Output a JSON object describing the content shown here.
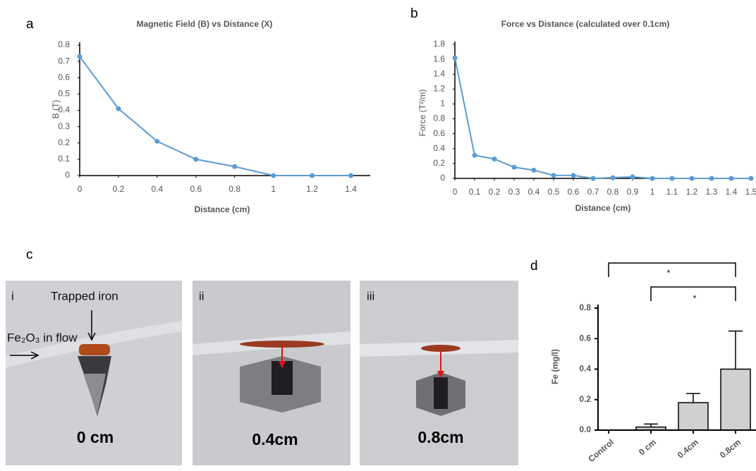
{
  "panel_labels": [
    "a",
    "b",
    "c",
    "d"
  ],
  "photos": [
    {
      "numeral": "i",
      "caption": "0 cm",
      "labels": [
        "Trapped iron",
        "Fe₂O₃ in flow"
      ]
    },
    {
      "numeral": "ii",
      "caption": "0.4cm"
    },
    {
      "numeral": "iii",
      "caption": "0.8cm"
    }
  ],
  "chart_data": [
    {
      "type": "line",
      "title": "Magnetic Field (B) vs Distance (X)",
      "x_label": "Distance (cm)",
      "y_label": "B (T)",
      "x": [
        0,
        0.2,
        0.4,
        0.6,
        0.8,
        1,
        1.2,
        1.4
      ],
      "values": [
        0.73,
        0.41,
        0.21,
        0.1,
        0.055,
        0,
        0,
        0
      ],
      "color": "#5b9bd5",
      "xlim": [
        0,
        1.5
      ],
      "xticks": [
        0,
        0.2,
        0.4,
        0.6,
        0.8,
        1,
        1.2,
        1.4
      ],
      "ylim": [
        0,
        0.8
      ],
      "yticks": [
        0,
        0.1,
        0.2,
        0.3,
        0.4,
        0.5,
        0.6,
        0.7,
        0.8
      ]
    },
    {
      "type": "line",
      "title": "Force vs Distance (calculated over 0.1cm)",
      "x_label": "Distance (cm)",
      "y_label": "Force (T²/m)",
      "x": [
        0,
        0.1,
        0.2,
        0.3,
        0.4,
        0.5,
        0.6,
        0.7,
        0.8,
        0.9,
        1,
        1.1,
        1.2,
        1.3,
        1.4,
        1.5
      ],
      "values": [
        1.62,
        0.31,
        0.26,
        0.15,
        0.11,
        0.04,
        0.04,
        0,
        0.01,
        0.02,
        0,
        0,
        0,
        0,
        0,
        0
      ],
      "color": "#5b9bd5",
      "xlim": [
        0,
        1.5
      ],
      "xticks": [
        0,
        0.1,
        0.2,
        0.3,
        0.4,
        0.5,
        0.6,
        0.7,
        0.8,
        0.9,
        1,
        1.1,
        1.2,
        1.3,
        1.4,
        1.5
      ],
      "ylim": [
        0,
        1.8
      ],
      "yticks": [
        0,
        0.2,
        0.4,
        0.6,
        0.8,
        1,
        1.2,
        1.4,
        1.6,
        1.8
      ]
    },
    {
      "type": "bar",
      "y_label": "Fe (mg/l)",
      "categories": [
        "Control",
        "0 cm",
        "0.4cm",
        "0.8cm"
      ],
      "values": [
        0,
        0.02,
        0.18,
        0.4
      ],
      "errors": [
        0,
        0.02,
        0.06,
        0.25
      ],
      "color": "#d0d0d0",
      "ylim": [
        0,
        0.8
      ],
      "yticks": [
        {
          "value": 0,
          "label": "0.0"
        },
        0.2,
        0.4,
        0.6,
        0.8
      ],
      "annotations": [
        "*",
        "*"
      ]
    }
  ]
}
